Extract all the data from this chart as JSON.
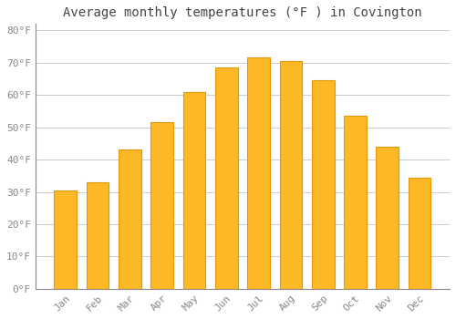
{
  "title": "Average monthly temperatures (°F ) in Covington",
  "months": [
    "Jan",
    "Feb",
    "Mar",
    "Apr",
    "May",
    "Jun",
    "Jul",
    "Aug",
    "Sep",
    "Oct",
    "Nov",
    "Dec"
  ],
  "values": [
    30.5,
    33.0,
    43.0,
    51.5,
    61.0,
    68.5,
    71.5,
    70.5,
    64.5,
    53.5,
    44.0,
    34.5
  ],
  "bar_color": "#FDB827",
  "bar_edge_color": "#E8960A",
  "background_color": "#FFFFFF",
  "grid_color": "#CCCCCC",
  "ylim": [
    0,
    82
  ],
  "yticks": [
    0,
    10,
    20,
    30,
    40,
    50,
    60,
    70,
    80
  ],
  "ytick_labels": [
    "0°F",
    "10°F",
    "20°F",
    "30°F",
    "40°F",
    "50°F",
    "60°F",
    "70°F",
    "80°F"
  ],
  "title_fontsize": 10,
  "tick_fontsize": 8,
  "font_family": "monospace",
  "tick_color": "#888888",
  "title_color": "#444444"
}
